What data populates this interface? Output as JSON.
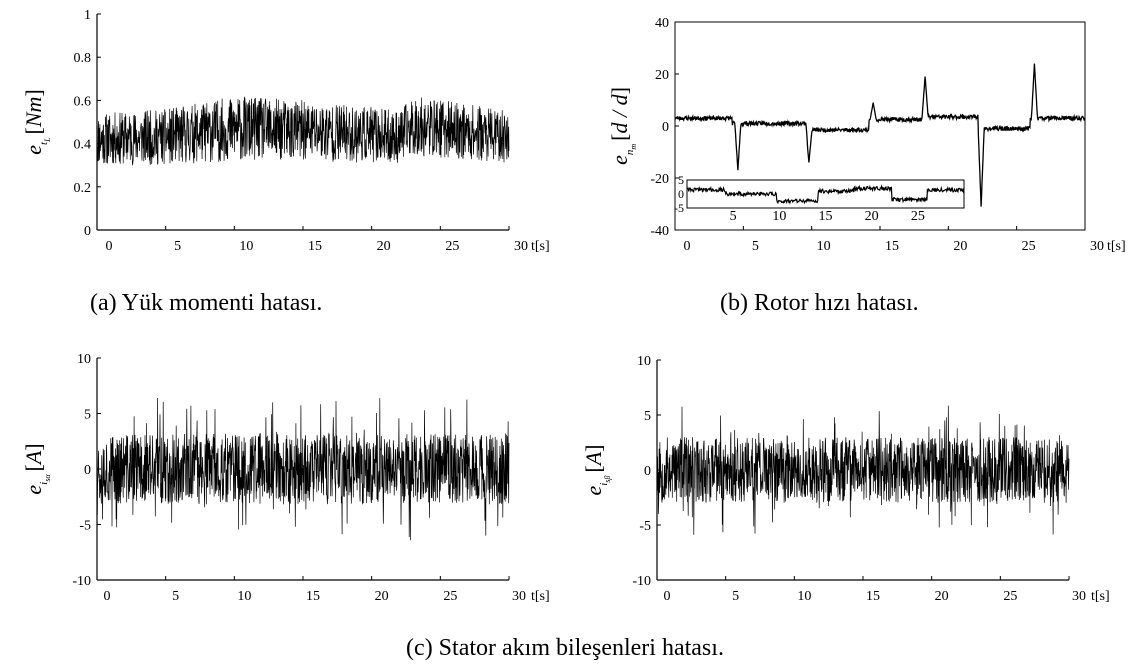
{
  "figure": {
    "captions": {
      "a": "(a) Yük momenti hatası.",
      "b": "(b) Rotor hızı hatası.",
      "c": "(c) Stator akım bileşenleri hatası."
    }
  },
  "chart_data": [
    {
      "id": "a",
      "type": "line",
      "ylabel": {
        "sym": "e",
        "sub": "t",
        "subsub": "L",
        "unit": "Nm"
      },
      "xunit": "t[s]",
      "xlim": [
        0,
        30
      ],
      "ylim": [
        0,
        1
      ],
      "xticks": [
        0,
        5,
        10,
        15,
        20,
        25,
        30
      ],
      "yticks": [
        0,
        0.2,
        0.4,
        0.6,
        0.8,
        1
      ],
      "ytick_labels": [
        "0",
        "0.2",
        "0.4",
        "0.6",
        "0.8",
        "1"
      ],
      "series": [
        {
          "style": "noise",
          "color": "#000000",
          "center": [
            [
              0,
              0.42
            ],
            [
              5,
              0.43
            ],
            [
              10,
              0.47
            ],
            [
              15,
              0.46
            ],
            [
              20,
              0.44
            ],
            [
              22,
              0.43
            ],
            [
              23,
              0.48
            ],
            [
              25,
              0.47
            ],
            [
              30,
              0.43
            ]
          ],
          "amplitude": [
            [
              0,
              0.12
            ],
            [
              5,
              0.13
            ],
            [
              10,
              0.15
            ],
            [
              15,
              0.14
            ],
            [
              20,
              0.13
            ],
            [
              22,
              0.12
            ],
            [
              23,
              0.14
            ],
            [
              30,
              0.12
            ]
          ]
        }
      ]
    },
    {
      "id": "b",
      "type": "line",
      "ylabel": {
        "sym": "e",
        "sub": "n",
        "subsub": "m",
        "unit": "d / d"
      },
      "xunit": "t[s]",
      "xlim": [
        0,
        30
      ],
      "ylim": [
        -40,
        40
      ],
      "xticks": [
        0,
        5,
        10,
        15,
        20,
        25,
        30
      ],
      "yticks": [
        -40,
        -20,
        0,
        20,
        40
      ],
      "ytick_labels": [
        "-40",
        "-20",
        "0",
        "20",
        "40"
      ],
      "series": [
        {
          "style": "steps",
          "color": "#000000",
          "noise": 0.8,
          "levels": [
            [
              0,
              3
            ],
            [
              4.2,
              1
            ],
            [
              9.7,
              -1.5
            ],
            [
              14.2,
              2.5
            ],
            [
              18.1,
              3.5
            ],
            [
              22.2,
              -1
            ],
            [
              26.0,
              3
            ]
          ],
          "spikes": [
            [
              4.6,
              -17
            ],
            [
              9.8,
              -14
            ],
            [
              14.5,
              9
            ],
            [
              18.3,
              19
            ],
            [
              22.4,
              -31
            ],
            [
              26.3,
              24
            ]
          ]
        }
      ],
      "inset": {
        "xlim": [
          0,
          30
        ],
        "ylim": [
          -5,
          5
        ],
        "xticks": [
          5,
          10,
          15,
          20,
          25
        ],
        "yticks": [
          -5,
          0,
          5
        ],
        "ytick_labels": [
          "-5",
          "0",
          "5"
        ],
        "levels": [
          [
            0,
            1.5
          ],
          [
            4.2,
            0
          ],
          [
            9.7,
            -2.5
          ],
          [
            14.2,
            1
          ],
          [
            18.1,
            2
          ],
          [
            22.2,
            -2
          ],
          [
            26.0,
            1.5
          ]
        ]
      }
    },
    {
      "id": "c1",
      "type": "line",
      "ylabel": {
        "sym": "e",
        "sub": "i",
        "subsub": "sα",
        "unit": "A"
      },
      "xunit": "t[s]",
      "xlim": [
        0,
        30
      ],
      "ylim": [
        -10,
        10
      ],
      "xticks": [
        0,
        5,
        10,
        15,
        20,
        25,
        30
      ],
      "yticks": [
        -10,
        -5,
        0,
        5,
        10
      ],
      "ytick_labels": [
        "-10",
        "-5",
        "0",
        "5",
        "10"
      ],
      "series": [
        {
          "style": "noise",
          "color": "#000000",
          "center": [
            [
              0,
              0
            ],
            [
              30,
              0
            ]
          ],
          "amplitude": [
            [
              0,
              3.2
            ],
            [
              30,
              3.2
            ]
          ],
          "peak": 6.5
        }
      ]
    },
    {
      "id": "c2",
      "type": "line",
      "ylabel": {
        "sym": "e",
        "sub": "i",
        "subsub": "sβ",
        "unit": "A"
      },
      "xunit": "t[s]",
      "xlim": [
        0,
        30
      ],
      "ylim": [
        -10,
        10
      ],
      "xticks": [
        0,
        5,
        10,
        15,
        20,
        25,
        30
      ],
      "yticks": [
        -10,
        -5,
        0,
        5,
        10
      ],
      "ytick_labels": [
        "-10",
        "-5",
        "0",
        "5",
        "10"
      ],
      "series": [
        {
          "style": "noise",
          "color": "#000000",
          "center": [
            [
              0,
              0
            ],
            [
              30,
              0
            ]
          ],
          "amplitude": [
            [
              0,
              3.0
            ],
            [
              30,
              3.0
            ]
          ],
          "peak": 6.0
        }
      ]
    }
  ]
}
